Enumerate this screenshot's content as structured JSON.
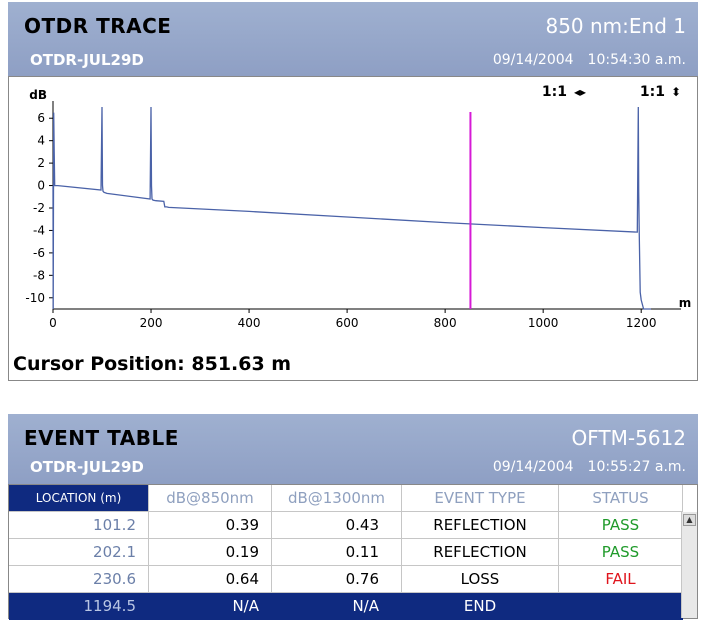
{
  "trace": {
    "title": "OTDR TRACE",
    "wavelength_end": "850 nm:End 1",
    "file": "OTDR-JUL29D",
    "date": "09/14/2004",
    "time": "10:54:30 a.m.",
    "zoom_h": "1:1",
    "zoom_v": "1:1",
    "y_unit": "dB",
    "x_unit": "m",
    "cursor_label": "Cursor Position: 851.63 m",
    "cursor_color": "#d61ad6",
    "trace_color": "#4a62a8"
  },
  "chart_data": {
    "type": "line",
    "xlim": [
      0,
      1220
    ],
    "ylim": [
      -11,
      7
    ],
    "x_ticks": [
      0,
      200,
      400,
      600,
      800,
      1000,
      1200
    ],
    "y_ticks": [
      6,
      4,
      2,
      0,
      -2,
      -4,
      -6,
      -8,
      -10
    ],
    "xlabel": "m",
    "ylabel": "dB",
    "cursor_x": 851.63,
    "series": [
      {
        "x": [
          0,
          0.5,
          1.5,
          2.5,
          3.5,
          10,
          98,
          100,
          101,
          102,
          104,
          110,
          198,
          200,
          201,
          202,
          204,
          210,
          226,
          228,
          232,
          236,
          400,
          600,
          800,
          1000,
          1192,
          1194,
          1195,
          1196,
          1198,
          1200,
          1205,
          1210,
          1220
        ],
        "y": [
          0,
          -11,
          6.5,
          3,
          0,
          0,
          -0.4,
          7,
          0,
          -0.5,
          -0.6,
          -0.7,
          -1.2,
          7,
          0,
          -1.2,
          -1.3,
          -1.35,
          -1.4,
          -1.9,
          -1.9,
          -1.95,
          -2.3,
          -2.8,
          -3.3,
          -3.75,
          -4.15,
          7,
          -0.5,
          -4,
          -9.5,
          -10.2,
          -11,
          -11,
          -11
        ]
      }
    ]
  },
  "events": {
    "title": "EVENT TABLE",
    "model": "OFTM-5612",
    "file": "OTDR-JUL29D",
    "date": "09/14/2004",
    "time": "10:55:27 a.m.",
    "columns": [
      "LOCATION (m)",
      "dB@850nm",
      "dB@1300nm",
      "EVENT TYPE",
      "STATUS"
    ],
    "rows": [
      {
        "location": "101.2",
        "db850": "0.39",
        "db1300": "0.43",
        "type": "REFLECTION",
        "status": "PASS"
      },
      {
        "location": "202.1",
        "db850": "0.19",
        "db1300": "0.11",
        "type": "REFLECTION",
        "status": "PASS"
      },
      {
        "location": "230.6",
        "db850": "0.64",
        "db1300": "0.76",
        "type": "LOSS",
        "status": "FAIL"
      },
      {
        "location": "1194.5",
        "db850": "N/A",
        "db1300": "N/A",
        "type": "END",
        "status": ""
      }
    ],
    "selected_row": 3,
    "pass_color": "#1f9a2a",
    "fail_color": "#e0141c",
    "selected_color": "#0f2a80"
  }
}
